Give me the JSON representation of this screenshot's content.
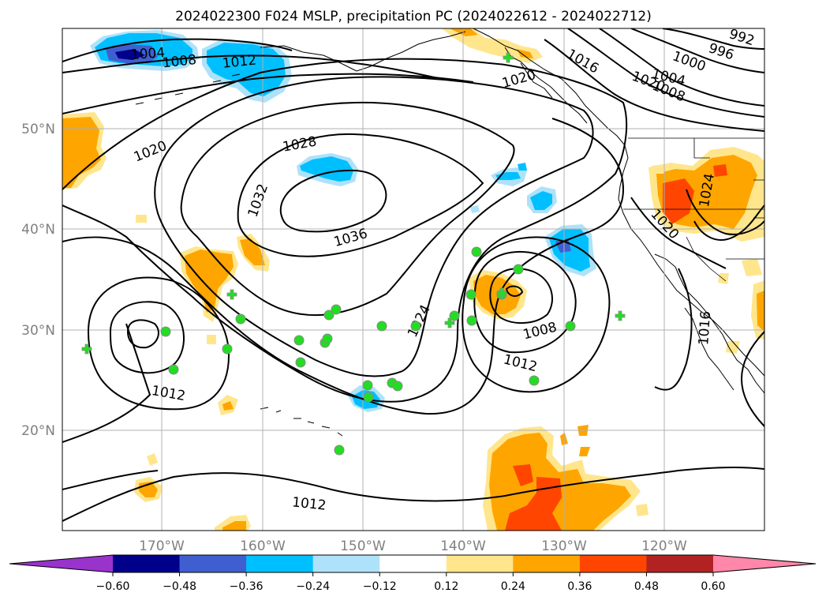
{
  "title": "2024022300 F024 MSLP, precipitation PC (2024022612 - 2024022712)",
  "lat_labels": [
    "50°N",
    "40°N",
    "30°N",
    "20°N"
  ],
  "lon_labels": [
    "170°W",
    "160°W",
    "150°W",
    "140°W",
    "130°W",
    "120°W"
  ],
  "isobar_labels": [
    "1004",
    "1008",
    "1012",
    "1020",
    "1028",
    "1032",
    "1036",
    "1024",
    "1008",
    "1012",
    "1012",
    "1012",
    "1020",
    "1016",
    "1016",
    "1000",
    "1004",
    "1008",
    "996",
    "992",
    "1020",
    "1020",
    "1024"
  ],
  "colorbar": {
    "ticks": [
      "−0.60",
      "−0.48",
      "−0.36",
      "−0.24",
      "−0.12",
      "0.12",
      "0.24",
      "0.36",
      "0.48",
      "0.60"
    ],
    "colors": [
      "#9933cc",
      "#00008b",
      "#3f5fd0",
      "#00bfff",
      "#aee2fa",
      "#ffffff",
      "#ffe68c",
      "#ffa500",
      "#ff4500",
      "#b22222",
      "#ff88aa"
    ]
  },
  "colors": {
    "land": "#000000",
    "grid": "#b0b0b0",
    "green_marker": "#22dd22",
    "marker_edge": "#8a8a8a"
  }
}
